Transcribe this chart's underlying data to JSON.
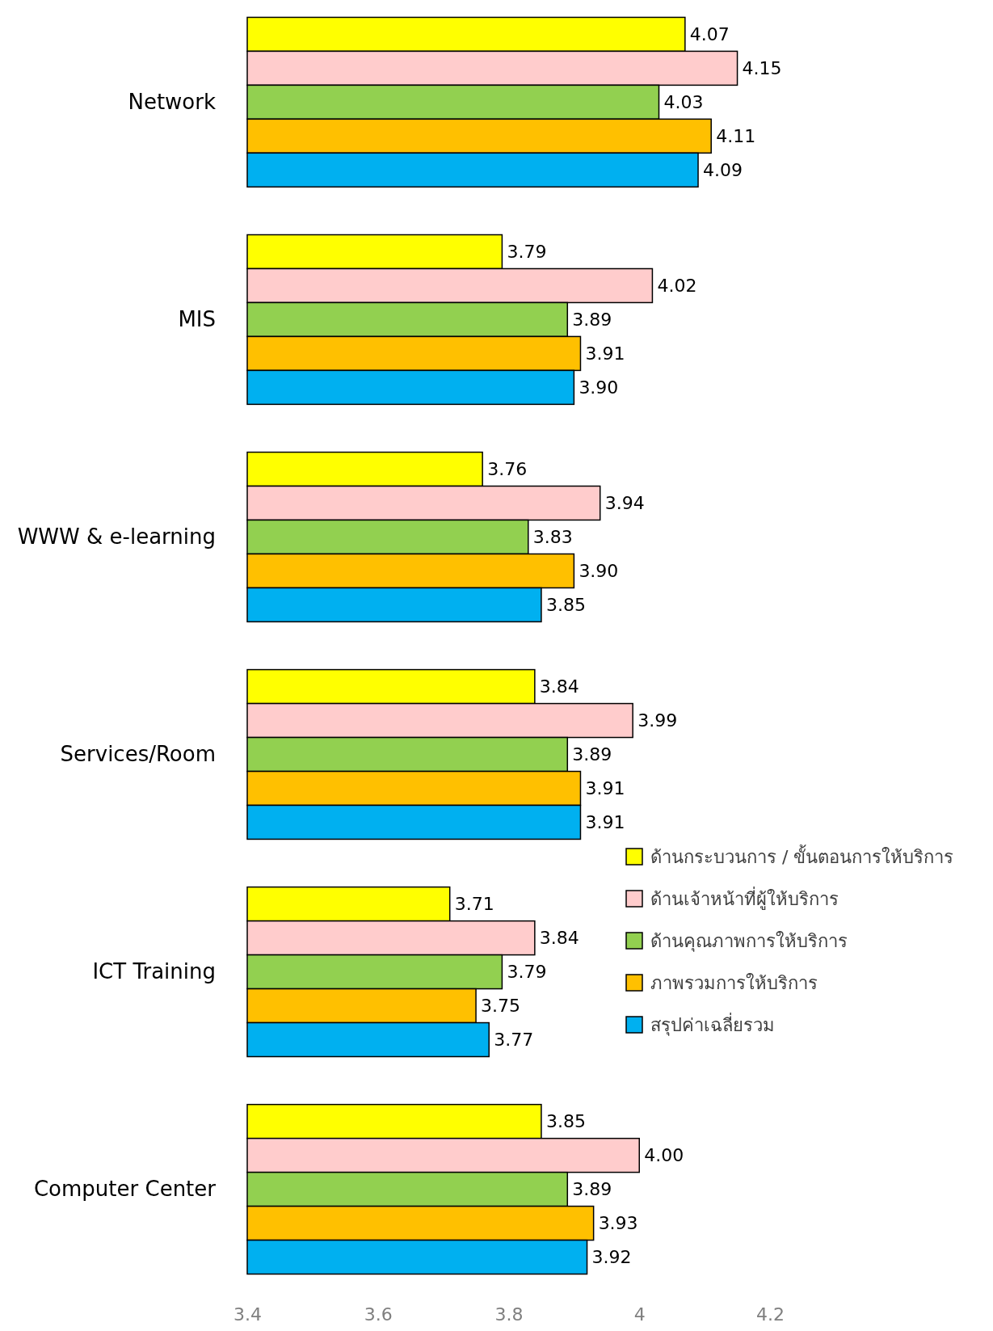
{
  "chart_data": {
    "type": "bar",
    "orientation": "horizontal",
    "categories": [
      "Network",
      "MIS",
      "WWW & e-learning",
      "Services/Room",
      "ICT Training",
      "Computer Center"
    ],
    "xlim": [
      3.4,
      4.2
    ],
    "xticks": [
      3.4,
      3.6,
      3.8,
      4,
      4.2
    ],
    "grid": false,
    "legend": "right",
    "series": [
      {
        "name": "ด้านกระบวนการ / ขั้นตอนการให้บริการ",
        "color": "#ffff00",
        "values": [
          4.07,
          3.79,
          3.76,
          3.84,
          3.71,
          3.85
        ],
        "value_labels": [
          "4.07",
          "3.79",
          "3.76",
          "3.84",
          "3.71",
          "3.85"
        ]
      },
      {
        "name": "ด้านเจ้าหน้าที่ผู้ให้บริการ",
        "color": "#ffcccc",
        "values": [
          4.15,
          4.02,
          3.94,
          3.99,
          3.84,
          4.0
        ],
        "value_labels": [
          "4.15",
          "4.02",
          "3.94",
          "3.99",
          "3.84",
          "4.00"
        ]
      },
      {
        "name": "ด้านคุณภาพการให้บริการ",
        "color": "#92d050",
        "values": [
          4.03,
          3.89,
          3.83,
          3.89,
          3.79,
          3.89
        ],
        "value_labels": [
          "4.03",
          "3.89",
          "3.83",
          "3.89",
          "3.79",
          "3.89"
        ]
      },
      {
        "name": "ภาพรวมการให้บริการ",
        "color": "#ffc000",
        "values": [
          4.11,
          3.91,
          3.9,
          3.91,
          3.75,
          3.93
        ],
        "value_labels": [
          "4.11",
          "3.91",
          "3.90",
          "3.91",
          "3.75",
          "3.93"
        ]
      },
      {
        "name": "สรุปค่าเฉลี่ยรวม",
        "color": "#00b0f0",
        "values": [
          4.09,
          3.9,
          3.85,
          3.91,
          3.77,
          3.92
        ],
        "value_labels": [
          "4.09",
          "3.90",
          "3.85",
          "3.91",
          "3.77",
          "3.92"
        ]
      }
    ]
  }
}
